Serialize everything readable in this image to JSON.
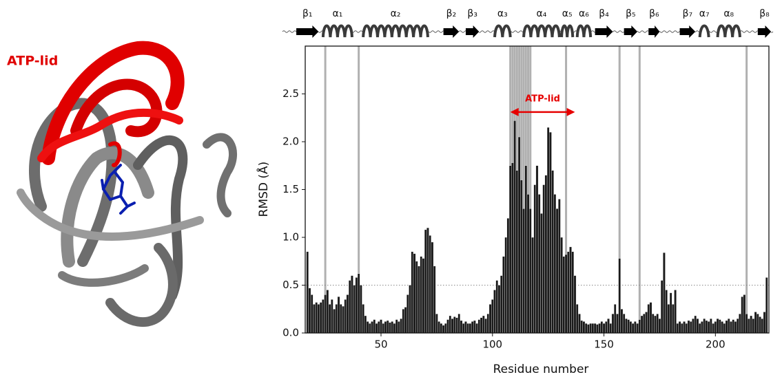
{
  "structure_panel": {
    "label": "ATP-lid"
  },
  "chart_data": {
    "type": "bar",
    "xlabel": "Residue number",
    "ylabel": "RMSD (Å)",
    "xlim": [
      16,
      224
    ],
    "ylim": [
      0,
      3.0
    ],
    "xticks": [
      50,
      100,
      150,
      200
    ],
    "yticks": [
      {
        "value": 0,
        "label": "0.0"
      },
      0.5,
      {
        "value": 1,
        "label": "1.0"
      },
      1.5,
      {
        "value": 2,
        "label": "2.0"
      },
      2.5
    ],
    "color": "#1a1a1a",
    "reference_line": 0.5,
    "marked_residues": [
      25,
      40,
      108,
      109,
      110,
      111,
      112,
      113,
      114,
      115,
      116,
      117,
      133,
      157,
      166,
      214
    ],
    "annotation": {
      "text": "ATP-lid",
      "x": [
        108,
        137
      ],
      "y": 2.31,
      "color": "#e60000"
    },
    "secondary_structure": [
      {
        "kind": "strand",
        "label": "β₁",
        "start": 12,
        "end": 22
      },
      {
        "kind": "helix",
        "label": "α₁",
        "start": 24,
        "end": 37
      },
      {
        "kind": "helix",
        "label": "α₂",
        "start": 42,
        "end": 71
      },
      {
        "kind": "strand",
        "label": "β₂",
        "start": 78,
        "end": 85
      },
      {
        "kind": "strand",
        "label": "β₃",
        "start": 88,
        "end": 94
      },
      {
        "kind": "helix",
        "label": "α₃",
        "start": 101,
        "end": 108
      },
      {
        "kind": "helix",
        "label": "α₄",
        "start": 114,
        "end": 130
      },
      {
        "kind": "helix",
        "label": "α₅",
        "start": 131,
        "end": 136
      },
      {
        "kind": "helix",
        "label": "α₆",
        "start": 138,
        "end": 144
      },
      {
        "kind": "strand",
        "label": "β₄",
        "start": 146,
        "end": 154
      },
      {
        "kind": "strand",
        "label": "β₅",
        "start": 159,
        "end": 165
      },
      {
        "kind": "strand",
        "label": "β₆",
        "start": 170,
        "end": 175
      },
      {
        "kind": "strand",
        "label": "β₇",
        "start": 184,
        "end": 191
      },
      {
        "kind": "helix",
        "label": "α₇",
        "start": 193,
        "end": 197
      },
      {
        "kind": "helix",
        "label": "α₈",
        "start": 201,
        "end": 211
      },
      {
        "kind": "strand",
        "label": "β₈",
        "start": 219,
        "end": 225
      }
    ],
    "x": [
      17,
      18,
      19,
      20,
      21,
      22,
      23,
      24,
      25,
      26,
      27,
      28,
      29,
      30,
      31,
      32,
      33,
      34,
      35,
      36,
      37,
      38,
      39,
      40,
      41,
      42,
      43,
      44,
      45,
      46,
      47,
      48,
      49,
      50,
      51,
      52,
      53,
      54,
      55,
      56,
      57,
      58,
      59,
      60,
      61,
      62,
      63,
      64,
      65,
      66,
      67,
      68,
      69,
      70,
      71,
      72,
      73,
      74,
      75,
      76,
      77,
      78,
      79,
      80,
      81,
      82,
      83,
      84,
      85,
      86,
      87,
      88,
      89,
      90,
      91,
      92,
      93,
      94,
      95,
      96,
      97,
      98,
      99,
      100,
      101,
      102,
      103,
      104,
      105,
      106,
      107,
      108,
      109,
      110,
      111,
      112,
      113,
      114,
      115,
      116,
      117,
      118,
      119,
      120,
      121,
      122,
      123,
      124,
      125,
      126,
      127,
      128,
      129,
      130,
      131,
      132,
      133,
      134,
      135,
      136,
      137,
      138,
      139,
      140,
      141,
      142,
      143,
      144,
      145,
      146,
      147,
      148,
      149,
      150,
      151,
      152,
      153,
      154,
      155,
      156,
      157,
      158,
      159,
      160,
      161,
      162,
      163,
      164,
      165,
      166,
      167,
      168,
      169,
      170,
      171,
      172,
      173,
      174,
      175,
      176,
      177,
      178,
      179,
      180,
      181,
      182,
      183,
      184,
      185,
      186,
      187,
      188,
      189,
      190,
      191,
      192,
      193,
      194,
      195,
      196,
      197,
      198,
      199,
      200,
      201,
      202,
      203,
      204,
      205,
      206,
      207,
      208,
      209,
      210,
      211,
      212,
      213,
      214,
      215,
      216,
      217,
      218,
      219,
      220,
      221,
      222,
      223
    ],
    "values": [
      0.85,
      0.47,
      0.4,
      0.3,
      0.32,
      0.3,
      0.32,
      0.35,
      0.4,
      0.45,
      0.3,
      0.35,
      0.25,
      0.3,
      0.38,
      0.3,
      0.28,
      0.35,
      0.4,
      0.55,
      0.6,
      0.5,
      0.58,
      0.62,
      0.5,
      0.3,
      0.18,
      0.12,
      0.1,
      0.12,
      0.14,
      0.1,
      0.12,
      0.14,
      0.1,
      0.12,
      0.13,
      0.11,
      0.12,
      0.1,
      0.14,
      0.12,
      0.15,
      0.25,
      0.27,
      0.4,
      0.5,
      0.85,
      0.83,
      0.75,
      0.7,
      0.8,
      0.78,
      1.08,
      1.1,
      1.02,
      0.95,
      0.7,
      0.2,
      0.12,
      0.1,
      0.08,
      0.1,
      0.14,
      0.18,
      0.15,
      0.17,
      0.16,
      0.2,
      0.13,
      0.1,
      0.12,
      0.1,
      0.1,
      0.12,
      0.13,
      0.1,
      0.14,
      0.16,
      0.18,
      0.15,
      0.2,
      0.3,
      0.35,
      0.45,
      0.55,
      0.5,
      0.6,
      0.8,
      1.0,
      1.2,
      1.75,
      1.78,
      2.22,
      1.7,
      2.05,
      1.6,
      1.3,
      1.75,
      1.45,
      1.3,
      1.0,
      1.55,
      1.75,
      1.45,
      1.25,
      1.55,
      1.65,
      2.15,
      2.1,
      1.7,
      1.45,
      1.3,
      1.4,
      1.0,
      0.8,
      0.82,
      0.85,
      0.9,
      0.85,
      0.6,
      0.3,
      0.2,
      0.13,
      0.12,
      0.1,
      0.09,
      0.1,
      0.1,
      0.1,
      0.09,
      0.1,
      0.12,
      0.1,
      0.12,
      0.15,
      0.1,
      0.2,
      0.3,
      0.2,
      0.78,
      0.25,
      0.2,
      0.15,
      0.14,
      0.12,
      0.1,
      0.12,
      0.1,
      0.14,
      0.18,
      0.2,
      0.22,
      0.3,
      0.32,
      0.2,
      0.18,
      0.2,
      0.15,
      0.55,
      0.84,
      0.45,
      0.3,
      0.42,
      0.3,
      0.45,
      0.1,
      0.12,
      0.1,
      0.12,
      0.1,
      0.13,
      0.12,
      0.15,
      0.18,
      0.15,
      0.1,
      0.12,
      0.15,
      0.13,
      0.12,
      0.15,
      0.1,
      0.12,
      0.15,
      0.14,
      0.12,
      0.1,
      0.13,
      0.15,
      0.12,
      0.14,
      0.12,
      0.15,
      0.2,
      0.38,
      0.4,
      0.2,
      0.15,
      0.18,
      0.15,
      0.22,
      0.2,
      0.17,
      0.15,
      0.22,
      0.58
    ]
  }
}
